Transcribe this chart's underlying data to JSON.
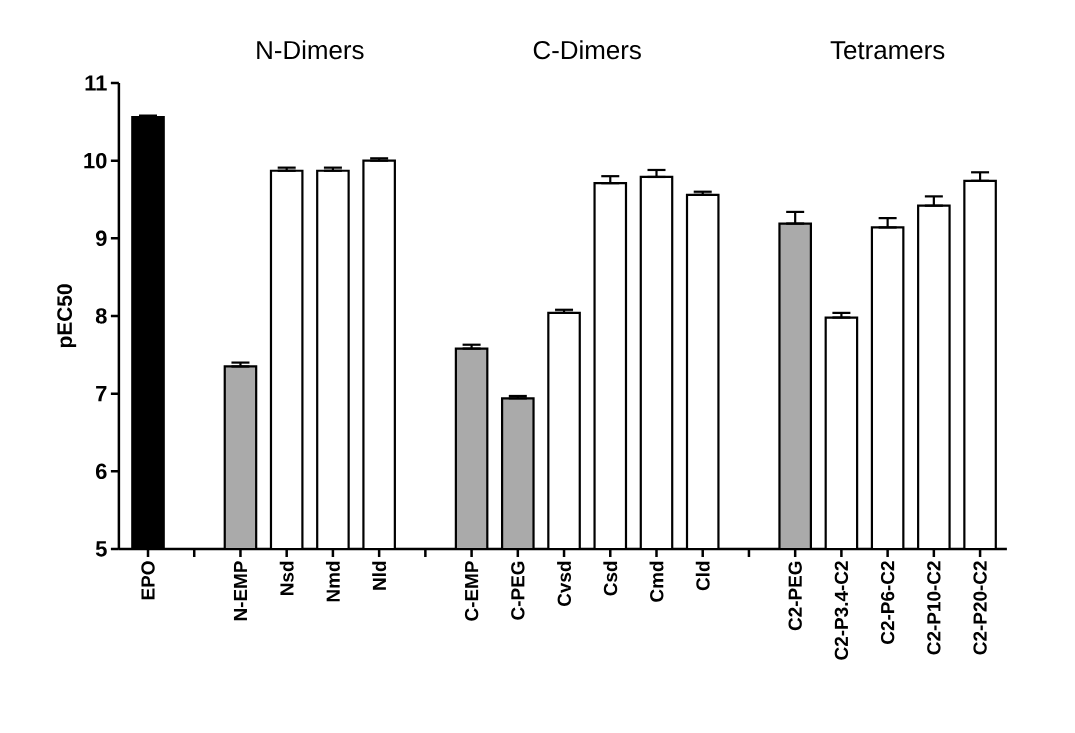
{
  "chart_data": {
    "type": "bar",
    "ylabel": "pEC50",
    "categories": [
      "EPO",
      null,
      "N-EMP",
      "Nsd",
      "Nmd",
      "Nld",
      null,
      "C-EMP",
      "C-PEG",
      "Cvsd",
      "Csd",
      "Cmd",
      "Cld",
      null,
      "C2-PEG",
      "C2-P3.4-C2",
      "C2-P6-C2",
      "C2-P10-C2",
      "C2-P20-C2"
    ],
    "values": [
      10.56,
      null,
      7.35,
      9.87,
      9.87,
      10.0,
      null,
      7.58,
      6.94,
      8.04,
      9.71,
      9.79,
      9.56,
      null,
      9.19,
      7.98,
      9.14,
      9.42,
      9.74
    ],
    "colors": [
      "#000000",
      null,
      "#aaaaaa",
      "#ffffff",
      "#ffffff",
      "#ffffff",
      null,
      "#aaaaaa",
      "#aaaaaa",
      "#ffffff",
      "#ffffff",
      "#ffffff",
      "#ffffff",
      null,
      "#aaaaaa",
      "#ffffff",
      "#ffffff",
      "#ffffff",
      "#ffffff"
    ],
    "errors": [
      [
        10.56,
        10.58
      ],
      null,
      [
        7.35,
        7.4
      ],
      [
        9.87,
        9.91
      ],
      [
        9.87,
        9.91
      ],
      [
        10.0,
        10.03
      ],
      null,
      [
        7.58,
        7.63
      ],
      [
        6.94,
        6.97
      ],
      [
        8.04,
        8.08
      ],
      [
        9.71,
        9.8
      ],
      [
        9.79,
        9.88
      ],
      [
        9.56,
        9.6
      ],
      null,
      [
        9.19,
        9.34
      ],
      [
        7.98,
        8.04
      ],
      [
        9.14,
        9.26
      ],
      [
        9.42,
        9.54
      ],
      [
        9.74,
        9.85
      ]
    ],
    "annotations": [
      "N-Dimers",
      "C-Dimers",
      "Tetramers"
    ],
    "ylim": [
      5,
      11
    ],
    "yticks": [
      5,
      6,
      7,
      8,
      9,
      10,
      11
    ]
  }
}
